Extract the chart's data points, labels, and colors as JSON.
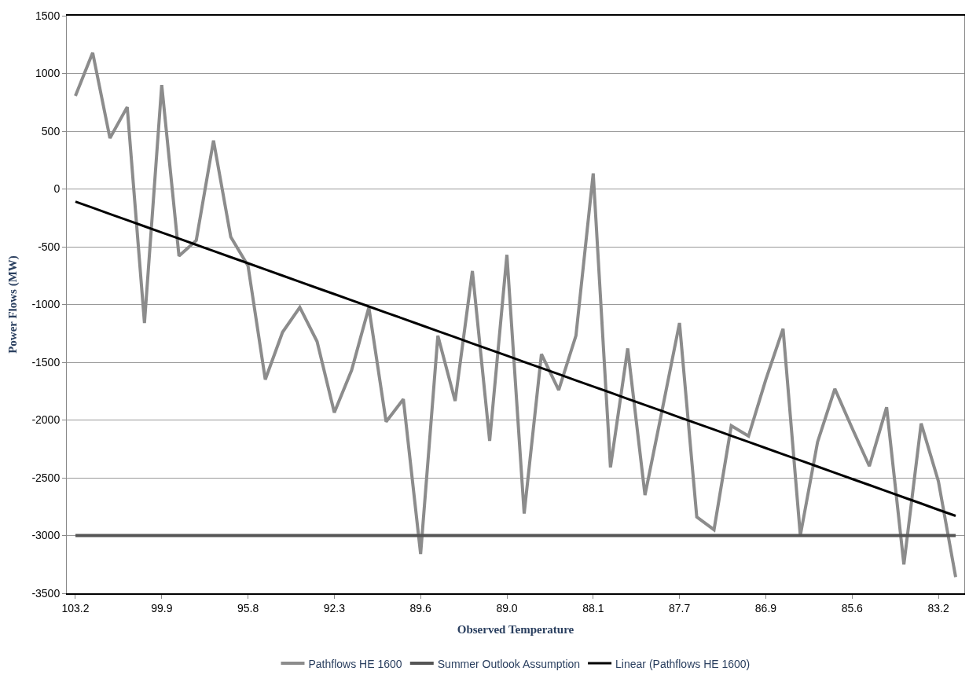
{
  "chart_data": {
    "type": "line",
    "xlabel": "Observed Temperature",
    "ylabel": "Power Flows (MW)",
    "categories": [
      "103.2",
      null,
      null,
      null,
      null,
      "99.9",
      null,
      null,
      null,
      null,
      "95.8",
      null,
      null,
      null,
      null,
      "92.3",
      null,
      null,
      null,
      null,
      "89.6",
      null,
      null,
      null,
      null,
      "89.0",
      null,
      null,
      null,
      null,
      "88.1",
      null,
      null,
      null,
      null,
      "87.7",
      null,
      null,
      null,
      null,
      "86.9",
      null,
      null,
      null,
      null,
      "85.6",
      null,
      null,
      null,
      null,
      "83.2",
      null
    ],
    "series": [
      {
        "name": "Pathflows HE 1600",
        "color": "#8c8c8c",
        "values": [
          806,
          1180,
          440,
          710,
          -1160,
          900,
          -580,
          -445,
          420,
          -415,
          -665,
          -1650,
          -1240,
          -1025,
          -1320,
          -1935,
          -1570,
          -1025,
          -2015,
          -1820,
          -3160,
          -1270,
          -1835,
          -710,
          -2180,
          -570,
          -2810,
          -1430,
          -1740,
          -1270,
          135,
          -2410,
          -1380,
          -2650,
          -1910,
          -1160,
          -2840,
          -2950,
          -2050,
          -2140,
          -1650,
          -1210,
          -3000,
          -2190,
          -1730,
          -2070,
          -2400,
          -1890,
          -3250,
          -2030,
          -2530,
          -3360
        ]
      },
      {
        "name": "Summer Outlook Assumption",
        "color": "#555555",
        "values": [
          -3000,
          -3000,
          -3000,
          -3000,
          -3000,
          -3000,
          -3000,
          -3000,
          -3000,
          -3000,
          -3000,
          -3000,
          -3000,
          -3000,
          -3000,
          -3000,
          -3000,
          -3000,
          -3000,
          -3000,
          -3000,
          -3000,
          -3000,
          -3000,
          -3000,
          -3000,
          -3000,
          -3000,
          -3000,
          -3000,
          -3000,
          -3000,
          -3000,
          -3000,
          -3000,
          -3000,
          -3000,
          -3000,
          -3000,
          -3000,
          -3000,
          -3000,
          -3000,
          -3000,
          -3000,
          -3000,
          -3000,
          -3000,
          -3000,
          -3000,
          -3000,
          -3000
        ]
      },
      {
        "name": "Linear (Pathflows HE 1600)",
        "color": "#000000",
        "values": [
          -110,
          -163,
          -217,
          -270,
          -323,
          -377,
          -430,
          -483,
          -537,
          -590,
          -643,
          -697,
          -750,
          -803,
          -857,
          -910,
          -963,
          -1017,
          -1070,
          -1123,
          -1177,
          -1230,
          -1283,
          -1337,
          -1390,
          -1443,
          -1497,
          -1550,
          -1603,
          -1657,
          -1710,
          -1763,
          -1817,
          -1870,
          -1923,
          -1977,
          -2030,
          -2083,
          -2137,
          -2190,
          -2243,
          -2297,
          -2350,
          -2403,
          -2457,
          -2510,
          -2563,
          -2617,
          -2670,
          -2723,
          -2777,
          -2830
        ]
      }
    ],
    "ylim": [
      -3500,
      1500
    ],
    "yticks": [
      -3500,
      -3000,
      -2500,
      -2000,
      -1500,
      -1000,
      -500,
      0,
      500,
      1000,
      1500
    ],
    "grid": "y",
    "legend": "bottom",
    "marker": "none",
    "line_style": "solid"
  }
}
